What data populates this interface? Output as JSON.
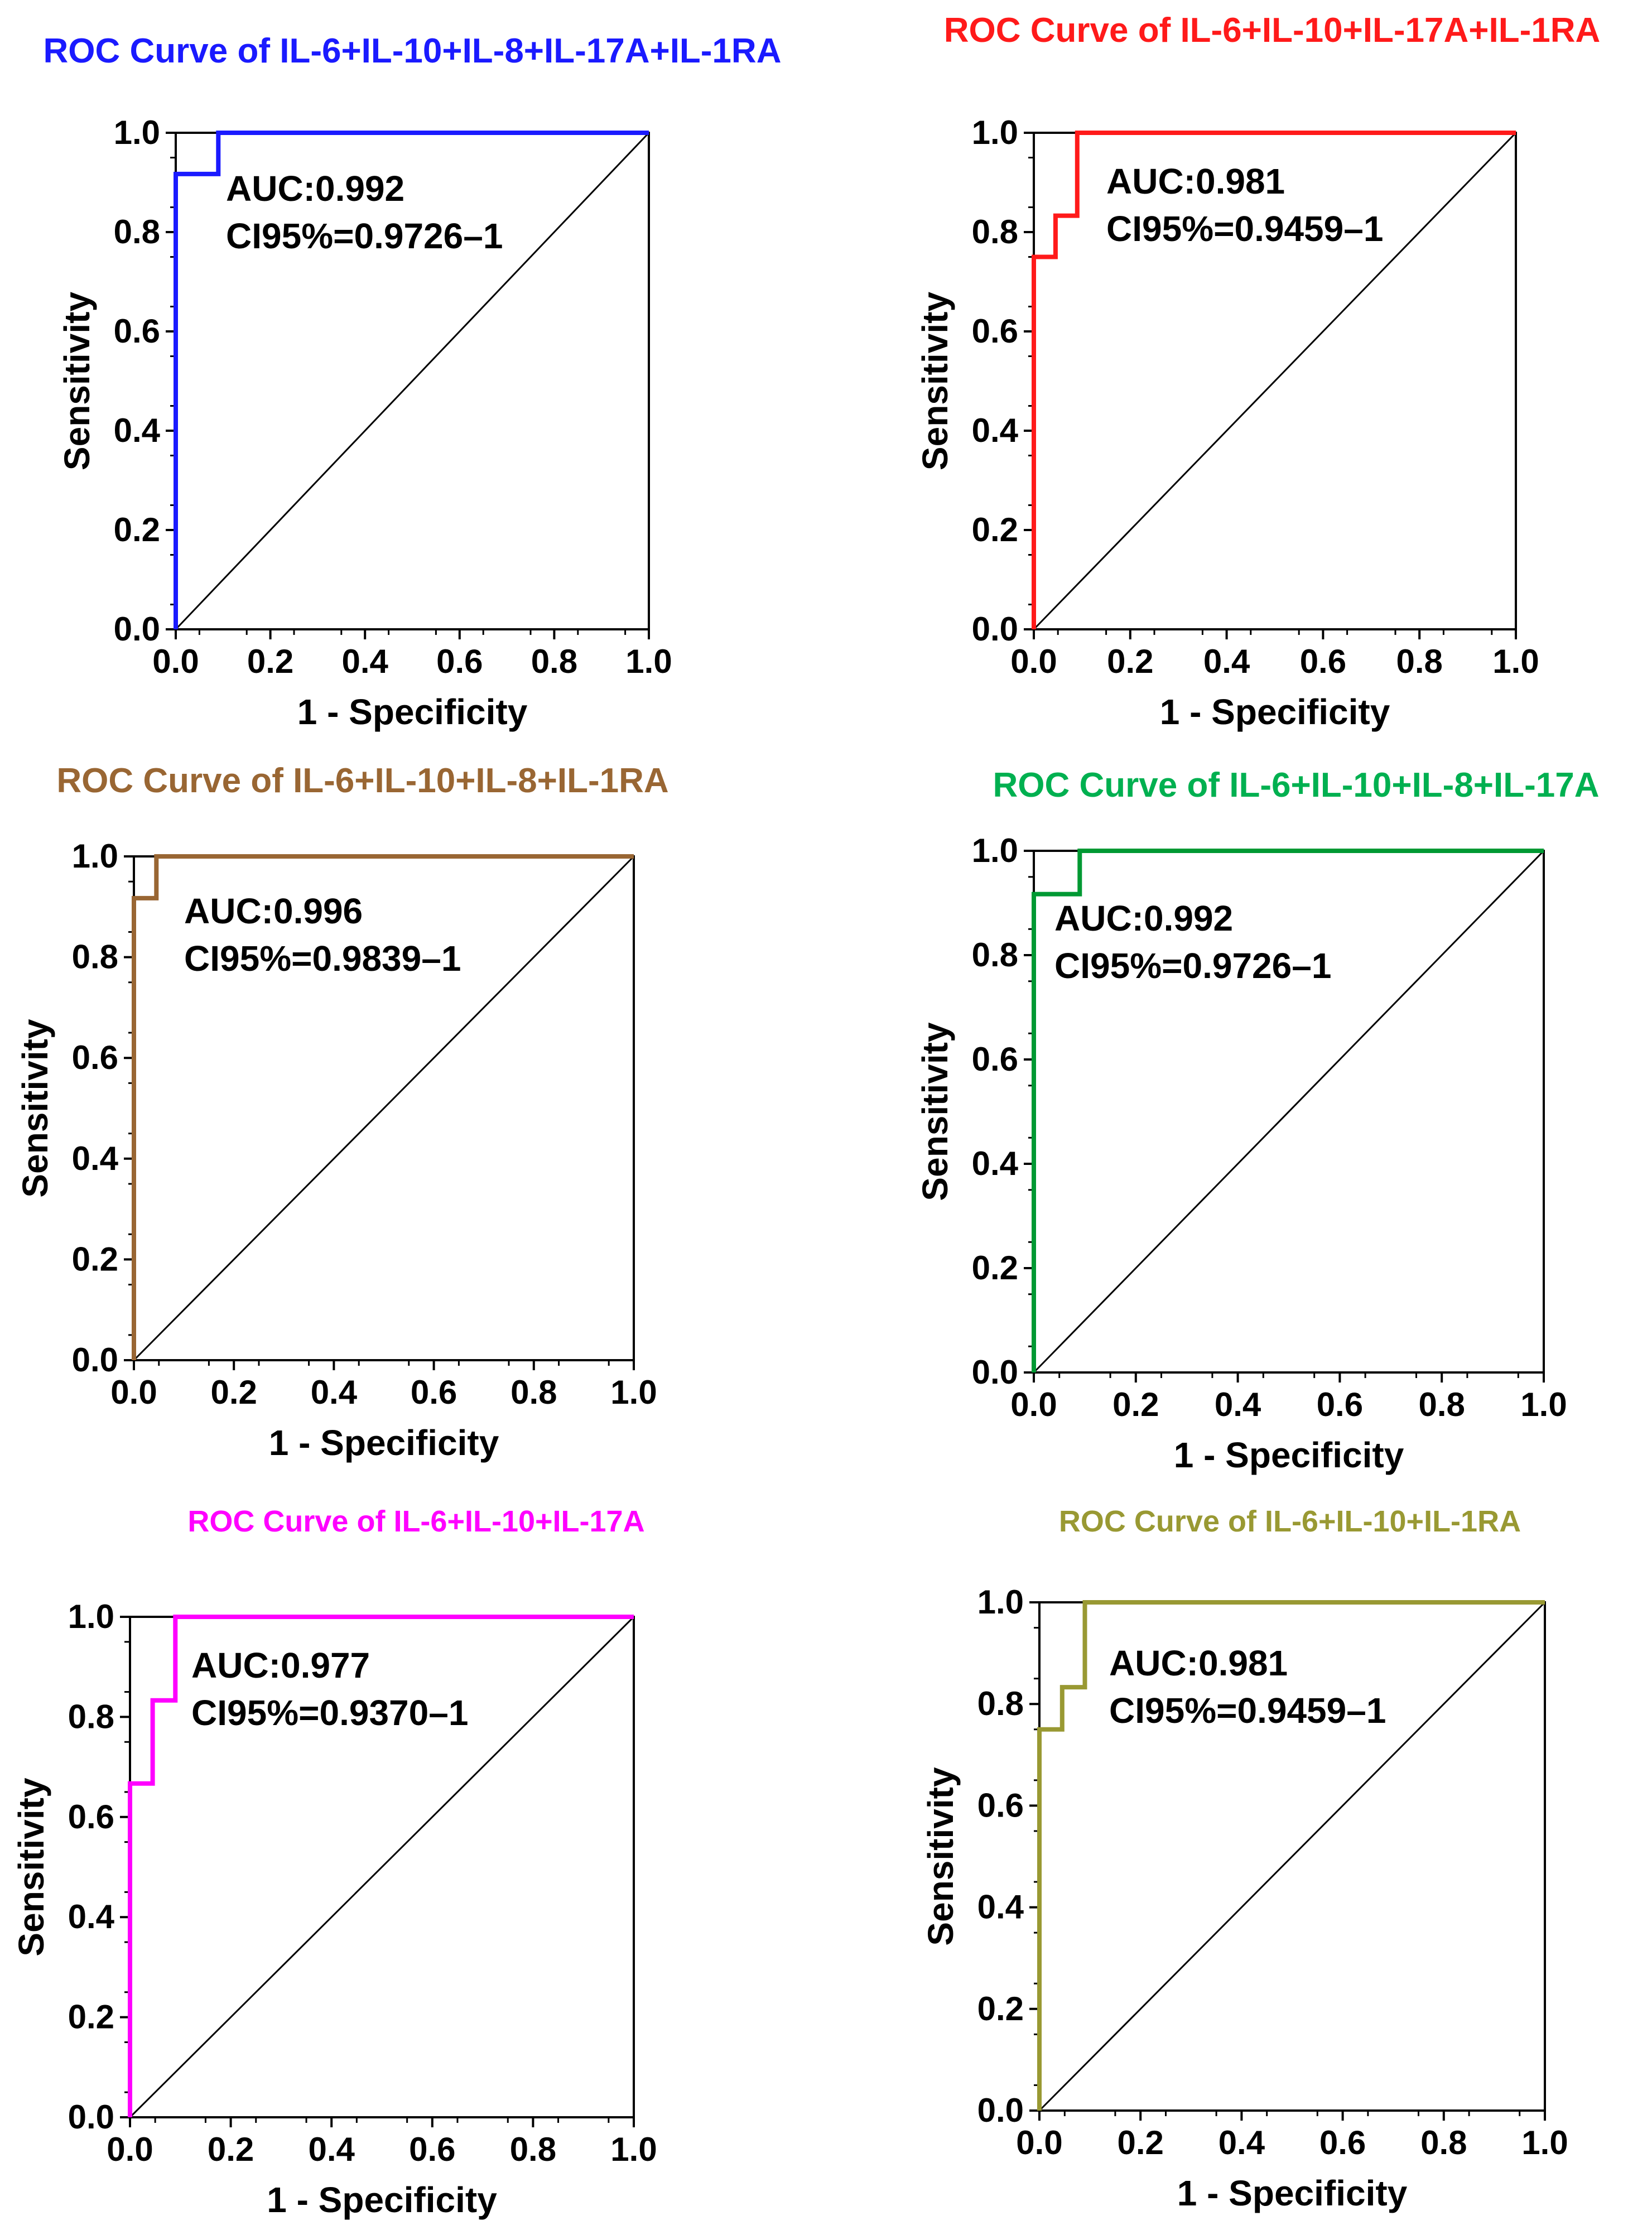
{
  "chart_data": [
    {
      "type": "line",
      "title": "ROC Curve of IL-6+IL-10+IL-8+IL-17A+IL-1RA",
      "title_color": "#1a1aff",
      "curve_color": "#1a1aff",
      "xlabel": "1 - Specificity",
      "ylabel": "Sensitivity",
      "xlim": [
        0,
        1
      ],
      "ylim": [
        0,
        1
      ],
      "xticks": [
        "0.0",
        "0.2",
        "0.4",
        "0.6",
        "0.8",
        "1.0"
      ],
      "yticks": [
        "0.0",
        "0.2",
        "0.4",
        "0.6",
        "0.8",
        "1.0"
      ],
      "grid": false,
      "series": [
        {
          "x": [
            0,
            0,
            0.09,
            0.09,
            1
          ],
          "y": [
            0,
            0.917,
            0.917,
            1,
            1
          ]
        }
      ],
      "annotations": [
        "AUC:0.992",
        "CI95%=0.9726–1"
      ]
    },
    {
      "type": "line",
      "title": "ROC Curve of IL-6+IL-10+IL-17A+IL-1RA",
      "title_color": "#ff1a1a",
      "curve_color": "#ff1a1a",
      "xlabel": "1 - Specificity",
      "ylabel": "Sensitivity",
      "xlim": [
        0,
        1
      ],
      "ylim": [
        0,
        1
      ],
      "xticks": [
        "0.0",
        "0.2",
        "0.4",
        "0.6",
        "0.8",
        "1.0"
      ],
      "yticks": [
        "0.0",
        "0.2",
        "0.4",
        "0.6",
        "0.8",
        "1.0"
      ],
      "grid": false,
      "series": [
        {
          "x": [
            0,
            0,
            0.045,
            0.045,
            0.09,
            0.09,
            1
          ],
          "y": [
            0,
            0.75,
            0.75,
            0.833,
            0.833,
            1,
            1
          ]
        }
      ],
      "annotations": [
        "AUC:0.981",
        "CI95%=0.9459–1"
      ]
    },
    {
      "type": "line",
      "title": "ROC Curve of IL-6+IL-10+IL-8+IL-1RA",
      "title_color": "#996633",
      "curve_color": "#996633",
      "xlabel": "1 - Specificity",
      "ylabel": "Sensitivity",
      "xlim": [
        0,
        1
      ],
      "ylim": [
        0,
        1
      ],
      "xticks": [
        "0.0",
        "0.2",
        "0.4",
        "0.6",
        "0.8",
        "1.0"
      ],
      "yticks": [
        "0.0",
        "0.2",
        "0.4",
        "0.6",
        "0.8",
        "1.0"
      ],
      "grid": false,
      "series": [
        {
          "x": [
            0,
            0,
            0.045,
            0.045,
            1
          ],
          "y": [
            0,
            0.917,
            0.917,
            1,
            1
          ]
        }
      ],
      "annotations": [
        "AUC:0.996",
        "CI95%=0.9839–1"
      ]
    },
    {
      "type": "line",
      "title": "ROC Curve of IL-6+IL-10+IL-8+IL-17A",
      "title_color": "#00b050",
      "curve_color": "#009933",
      "xlabel": "1 - Specificity",
      "ylabel": "Sensitivity",
      "xlim": [
        0,
        1
      ],
      "ylim": [
        0,
        1
      ],
      "xticks": [
        "0.0",
        "0.2",
        "0.4",
        "0.6",
        "0.8",
        "1.0"
      ],
      "yticks": [
        "0.0",
        "0.2",
        "0.4",
        "0.6",
        "0.8",
        "1.0"
      ],
      "grid": false,
      "series": [
        {
          "x": [
            0,
            0,
            0.09,
            0.09,
            1
          ],
          "y": [
            0,
            0.917,
            0.917,
            1,
            1
          ]
        }
      ],
      "annotations": [
        "AUC:0.992",
        "CI95%=0.9726–1"
      ]
    },
    {
      "type": "line",
      "title": "ROC Curve of IL-6+IL-10+IL-17A",
      "title_color": "#ff00ff",
      "curve_color": "#ff00ff",
      "xlabel": "1 - Specificity",
      "ylabel": "Sensitivity",
      "xlim": [
        0,
        1
      ],
      "ylim": [
        0,
        1
      ],
      "xticks": [
        "0.0",
        "0.2",
        "0.4",
        "0.6",
        "0.8",
        "1.0"
      ],
      "yticks": [
        "0.0",
        "0.2",
        "0.4",
        "0.6",
        "0.8",
        "1.0"
      ],
      "grid": false,
      "series": [
        {
          "x": [
            0,
            0,
            0.045,
            0.045,
            0.09,
            0.09,
            1
          ],
          "y": [
            0,
            0.667,
            0.667,
            0.833,
            0.833,
            1,
            1
          ]
        }
      ],
      "annotations": [
        "AUC:0.977",
        "CI95%=0.9370–1"
      ]
    },
    {
      "type": "line",
      "title": "ROC Curve of IL-6+IL-10+IL-1RA",
      "title_color": "#999933",
      "curve_color": "#999933",
      "xlabel": "1 - Specificity",
      "ylabel": "Sensitivity",
      "xlim": [
        0,
        1
      ],
      "ylim": [
        0,
        1
      ],
      "xticks": [
        "0.0",
        "0.2",
        "0.4",
        "0.6",
        "0.8",
        "1.0"
      ],
      "yticks": [
        "0.0",
        "0.2",
        "0.4",
        "0.6",
        "0.8",
        "1.0"
      ],
      "grid": false,
      "series": [
        {
          "x": [
            0,
            0,
            0.045,
            0.045,
            0.09,
            0.09,
            1
          ],
          "y": [
            0,
            0.75,
            0.75,
            0.833,
            0.833,
            1,
            1
          ]
        }
      ],
      "annotations": [
        "AUC:0.981",
        "CI95%=0.9459–1"
      ]
    }
  ]
}
